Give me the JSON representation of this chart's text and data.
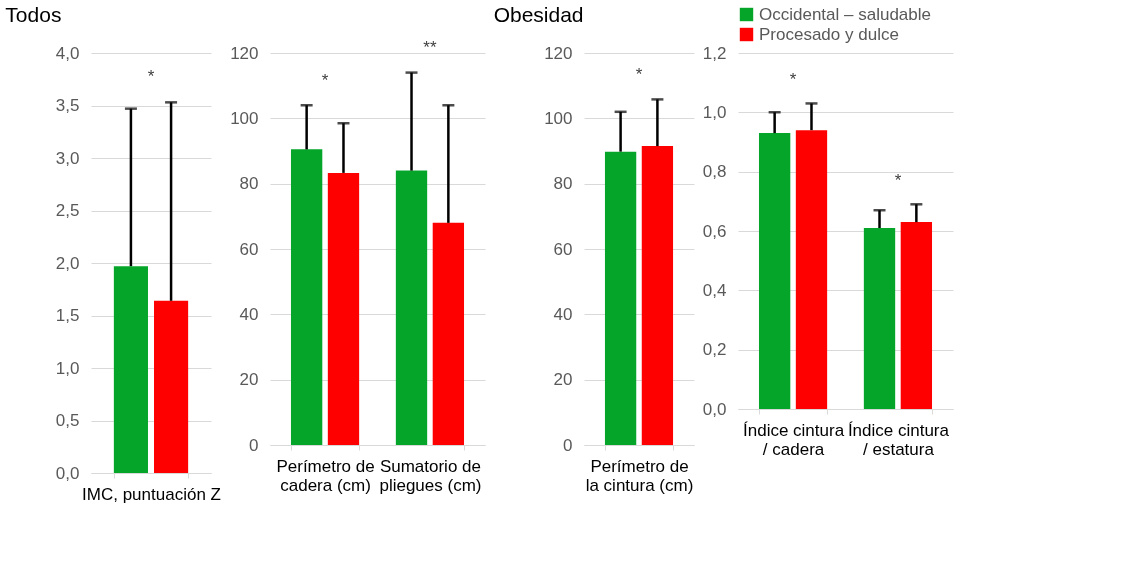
{
  "chart_data": [
    {
      "type": "bar",
      "title": "Todos",
      "categories": [
        "IMC, puntuación Z"
      ],
      "series": [
        {
          "color": "#05a52a",
          "values": [
            1.97
          ],
          "errors": [
            1.5
          ]
        },
        {
          "color": "#fe0000",
          "values": [
            1.64
          ],
          "errors": [
            1.89
          ]
        }
      ],
      "ylim": [
        0,
        4
      ],
      "yticks": [
        {
          "value": 0,
          "label": "0,0"
        },
        {
          "value": 0.5,
          "label": "0,5"
        },
        {
          "value": 1,
          "label": "1,0"
        },
        {
          "value": 1.5,
          "label": "1,5"
        },
        {
          "value": 2,
          "label": "2,0"
        },
        {
          "value": 2.5,
          "label": "2,5"
        },
        {
          "value": 3,
          "label": "3,0"
        },
        {
          "value": 3.5,
          "label": "3,5"
        },
        {
          "value": 4,
          "label": "4,0"
        }
      ],
      "annotations": [
        "*"
      ],
      "grid": "y",
      "legend": false
    },
    {
      "type": "bar",
      "categories": [
        "Perímetro de\ncadera (cm)",
        "Sumatorio de\npliegues (cm)"
      ],
      "series": [
        {
          "color": "#05a52a",
          "values": [
            90.5,
            84
          ],
          "errors": [
            13.5,
            30
          ]
        },
        {
          "color": "#fe0000",
          "values": [
            83.3,
            68
          ],
          "errors": [
            15.2,
            36
          ]
        }
      ],
      "ylim": [
        0,
        120
      ],
      "yticks": [
        0,
        20,
        40,
        60,
        80,
        100,
        120
      ],
      "annotations": [
        "*",
        "**"
      ],
      "grid": "y",
      "legend": false
    },
    {
      "type": "bar",
      "title": "Obesidad",
      "categories": [
        "Perímetro de\nla cintura (cm)"
      ],
      "series": [
        {
          "color": "#05a52a",
          "values": [
            89.8
          ],
          "errors": [
            12.2
          ]
        },
        {
          "color": "#fe0000",
          "values": [
            91.5
          ],
          "errors": [
            14.3
          ]
        }
      ],
      "ylim": [
        0,
        120
      ],
      "yticks": [
        0,
        20,
        40,
        60,
        80,
        100,
        120
      ],
      "annotations": [
        "*"
      ],
      "grid": "y",
      "legend": false
    },
    {
      "type": "bar",
      "categories": [
        "Índice cintura\n/ cadera",
        "Índice cintura\n/ estatura"
      ],
      "series": [
        {
          "name": "Occidental – saludable",
          "color": "#05a52a",
          "values": [
            0.93,
            0.61
          ],
          "errors": [
            0.07,
            0.06
          ]
        },
        {
          "name": "Procesado y dulce",
          "color": "#fe0000",
          "values": [
            0.94,
            0.63
          ],
          "errors": [
            0.09,
            0.06
          ]
        }
      ],
      "ylim": [
        0,
        1.2
      ],
      "yticks": [
        {
          "value": 0,
          "label": "0,0"
        },
        {
          "value": 0.2,
          "label": "0,2"
        },
        {
          "value": 0.4,
          "label": "0,4"
        },
        {
          "value": 0.6,
          "label": "0,6"
        },
        {
          "value": 0.8,
          "label": "0,8"
        },
        {
          "value": 1,
          "label": "1,0"
        },
        {
          "value": 1.2,
          "label": "1,2"
        }
      ],
      "annotations": [
        "*",
        "*"
      ],
      "grid": "y",
      "legend": "top"
    }
  ]
}
